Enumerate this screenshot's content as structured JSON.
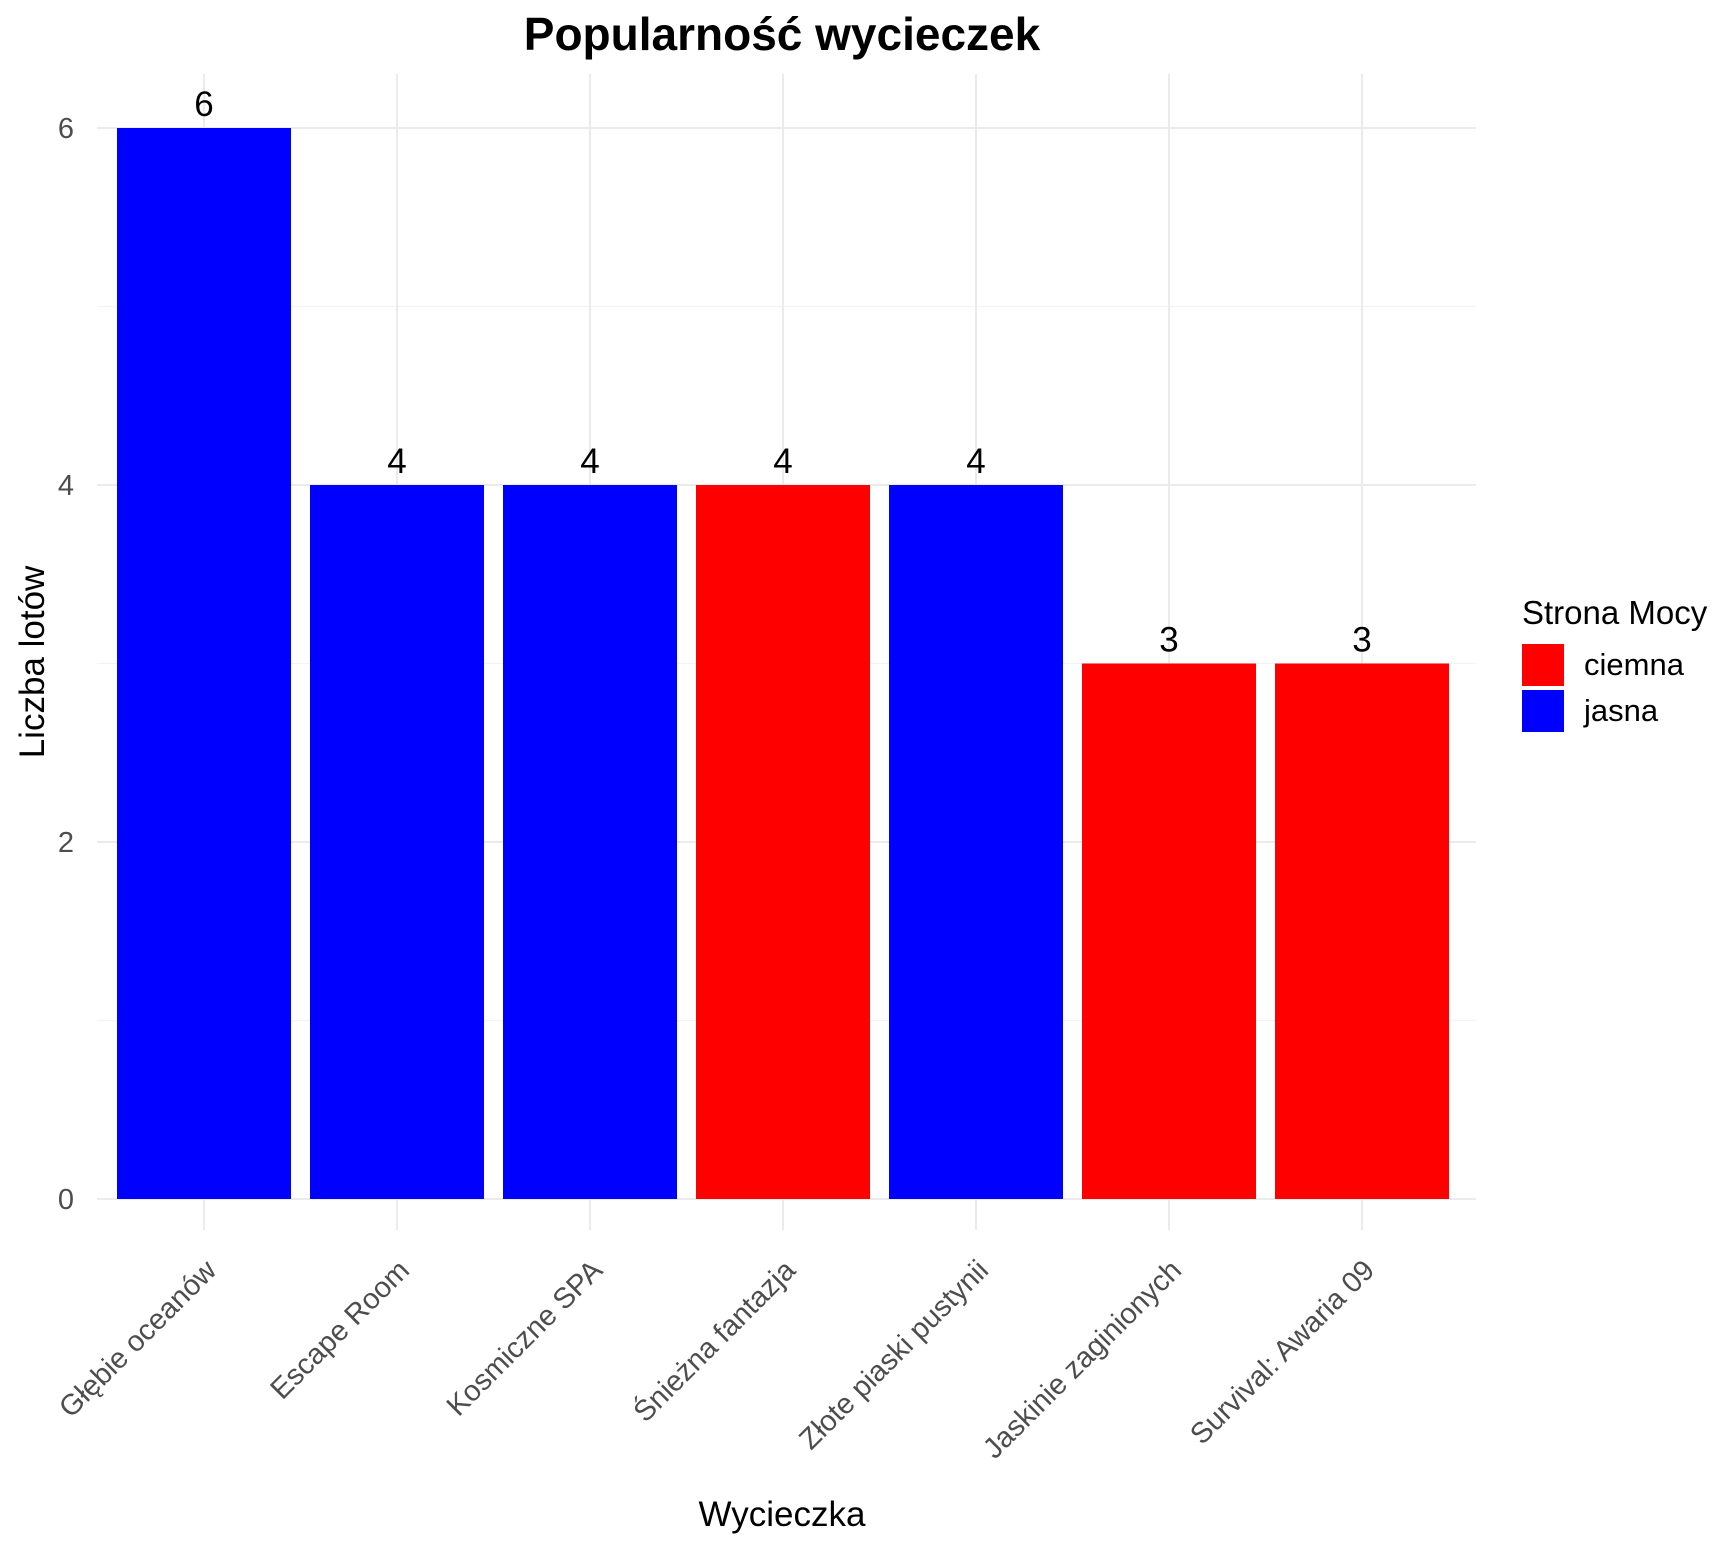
{
  "chart_data": {
    "type": "bar",
    "title": "Popularność wycieczek",
    "xlabel": "Wycieczka",
    "ylabel": "Liczba lotów",
    "ylim": [
      0,
      6.3
    ],
    "yticks": [
      0,
      2,
      4,
      6
    ],
    "grid": true,
    "legend": {
      "title": "Strona Mocy",
      "placement": "right",
      "entries": [
        {
          "name": "ciemna",
          "color": "#ff0000"
        },
        {
          "name": "jasna",
          "color": "#0000ff"
        }
      ]
    },
    "categories": [
      "Głębie oceanów",
      "Escape Room",
      "Kosmiczne SPA",
      "Śnieżna fantazja",
      "Złote piaski pustynii",
      "Jaskinie zaginionych",
      "Survival: Awaria 09"
    ],
    "values": [
      6,
      4,
      4,
      4,
      4,
      3,
      3
    ],
    "groups": [
      "jasna",
      "jasna",
      "jasna",
      "ciemna",
      "jasna",
      "ciemna",
      "ciemna"
    ],
    "data_labels": [
      "6",
      "4",
      "4",
      "4",
      "4",
      "3",
      "3"
    ]
  }
}
